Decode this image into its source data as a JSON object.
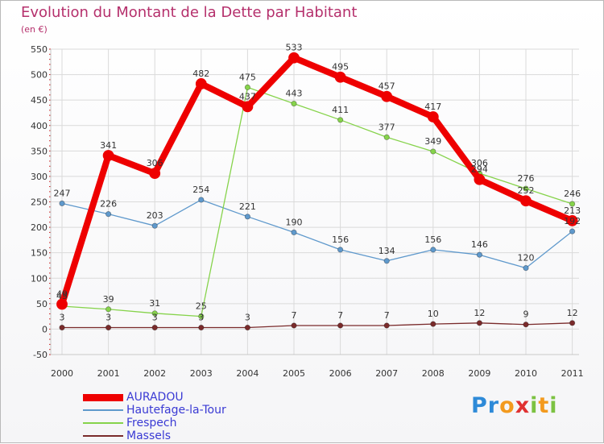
{
  "header": {
    "title": "Evolution du Montant de la Dette par Habitant",
    "subtitle": "(en €)"
  },
  "colors": {
    "title": "#b5306c",
    "legend_text": "#3a3ad4",
    "grid": "#dadada",
    "axis_text": "#333333"
  },
  "chart_data": {
    "type": "line",
    "title": "Evolution du Montant de la Dette par Habitant",
    "ylabel": "(en €)",
    "xlabel": "",
    "x": [
      "2000",
      "2001",
      "2002",
      "2003",
      "2004",
      "2005",
      "2006",
      "2007",
      "2008",
      "2009",
      "2010",
      "2011"
    ],
    "ylim": [
      -50,
      550
    ],
    "yticks": [
      -50,
      0,
      50,
      100,
      150,
      200,
      250,
      300,
      350,
      400,
      450,
      500,
      550
    ],
    "grid": true,
    "legend_position": "bottom-left",
    "series": [
      {
        "name": "AURADOU",
        "color": "#ee0000",
        "values": [
          49,
          341,
          306,
          482,
          437,
          533,
          495,
          457,
          417,
          294,
          252,
          213
        ],
        "labels": [
          "49",
          "341",
          "306",
          "482",
          "437",
          "533",
          "495",
          "457",
          "417",
          "294",
          "252",
          "213"
        ],
        "emphasis": true
      },
      {
        "name": "Hautefage-la-Tour",
        "color": "#5f99cc",
        "values": [
          247,
          226,
          203,
          254,
          221,
          190,
          156,
          134,
          156,
          146,
          120,
          192
        ],
        "labels": [
          "247",
          "226",
          "203",
          "254",
          "221",
          "190",
          "156",
          "134",
          "156",
          "146",
          "120",
          "192"
        ]
      },
      {
        "name": "Frespech",
        "color": "#86d34b",
        "values": [
          45,
          39,
          31,
          25,
          475,
          443,
          411,
          377,
          349,
          306,
          276,
          246
        ],
        "labels": [
          "45",
          "39",
          "31",
          "25",
          "475",
          "443",
          "411",
          "377",
          "349",
          "306",
          "276",
          "246"
        ]
      },
      {
        "name": "Massels",
        "color": "#7a2b2b",
        "values": [
          3,
          3,
          3,
          3,
          3,
          7,
          7,
          7,
          10,
          12,
          9,
          12
        ],
        "labels": [
          "3",
          "3",
          "3",
          "3",
          "3",
          "7",
          "7",
          "7",
          "10",
          "12",
          "9",
          "12"
        ]
      }
    ]
  },
  "branding": {
    "logo_letters": [
      {
        "char": "P",
        "color": "#2e8ad8"
      },
      {
        "char": "r",
        "color": "#2e8ad8"
      },
      {
        "char": "o",
        "color": "#f39a1e"
      },
      {
        "char": "x",
        "color": "#e03131"
      },
      {
        "char": "i",
        "color": "#7cc242"
      },
      {
        "char": "t",
        "color": "#f39a1e"
      },
      {
        "char": "i",
        "color": "#7cc242"
      }
    ]
  }
}
